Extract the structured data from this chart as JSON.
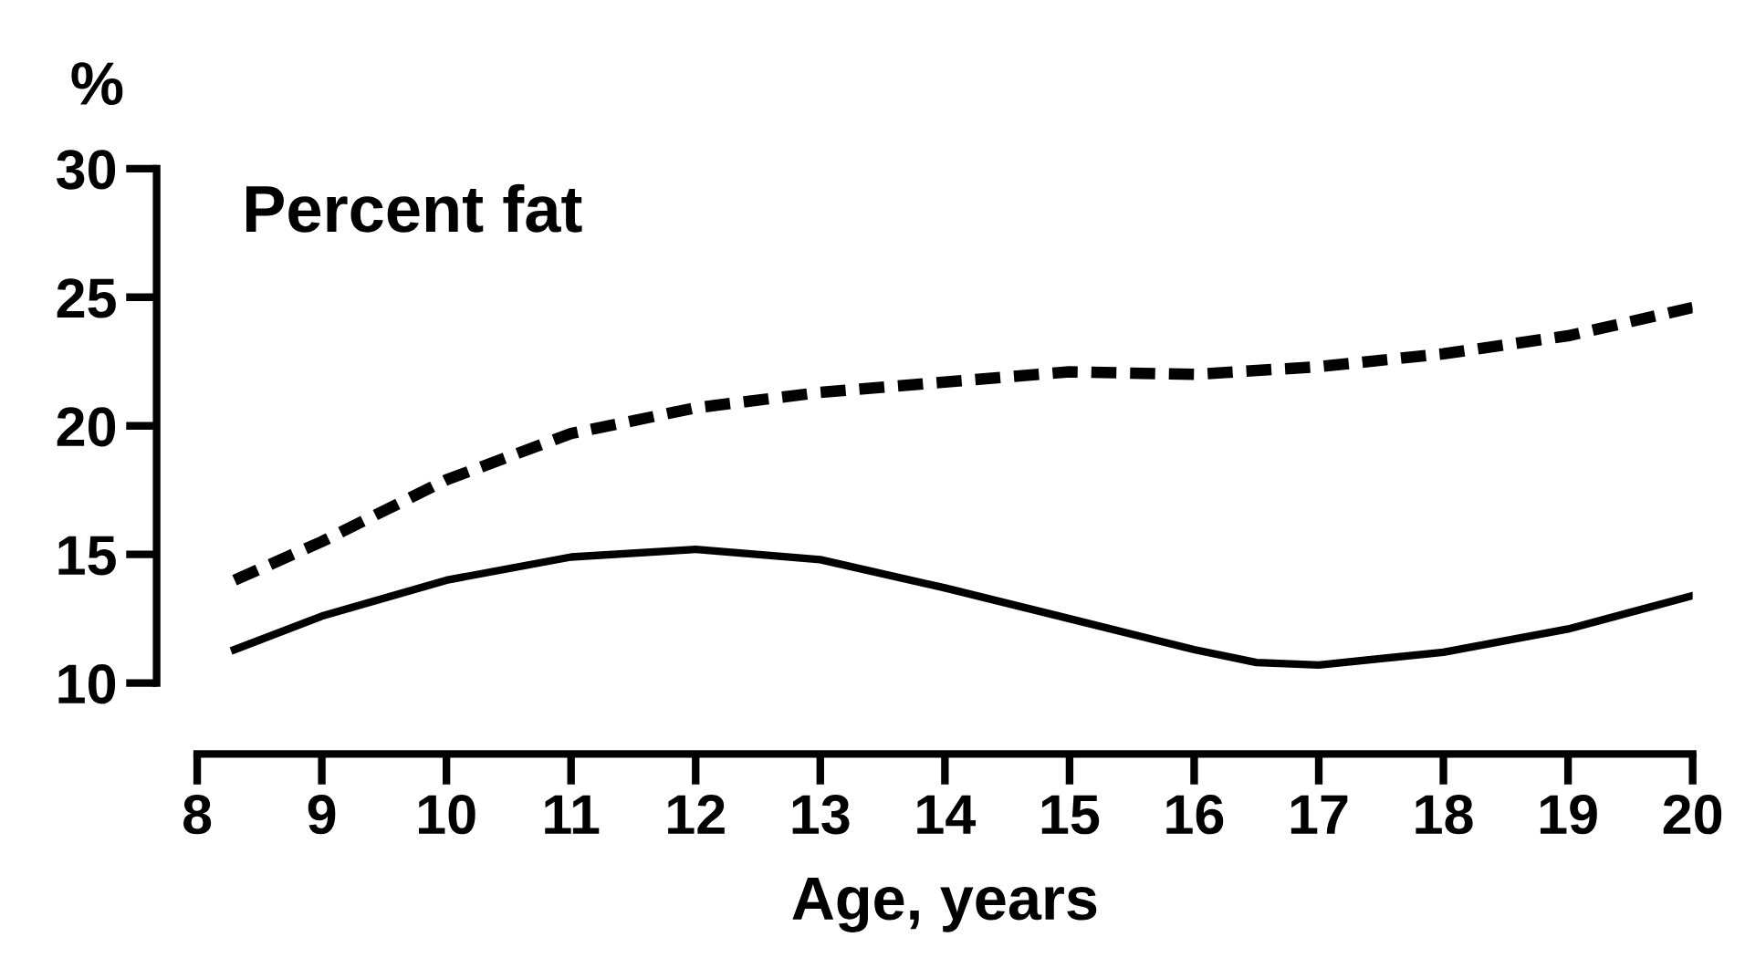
{
  "chart_data": {
    "type": "line",
    "title": "Percent fat",
    "ylabel": "%",
    "xlabel": "Age, years",
    "xlim": [
      8,
      20
    ],
    "xticks": [
      8,
      9,
      10,
      11,
      12,
      13,
      14,
      15,
      16,
      17,
      18,
      19,
      20
    ],
    "ylim": [
      10,
      30
    ],
    "yticks": [
      10,
      15,
      20,
      25,
      30
    ],
    "grid": false,
    "legend": false,
    "marker": "none",
    "series": [
      {
        "color": "#000000",
        "line_style": "dashed",
        "x": [
          8.3,
          9,
          10,
          11,
          12,
          13,
          14,
          15,
          16,
          17,
          18,
          19,
          20
        ],
        "values": [
          14.0,
          15.5,
          17.9,
          19.7,
          20.7,
          21.3,
          21.7,
          22.1,
          22.0,
          22.3,
          22.8,
          23.5,
          24.6
        ]
      },
      {
        "color": "#000000",
        "line_style": "solid",
        "x": [
          8.3,
          9,
          10,
          11,
          12,
          13,
          14,
          15,
          16,
          16.5,
          17,
          18,
          19,
          20
        ],
        "values": [
          11.3,
          12.6,
          14.0,
          14.9,
          15.2,
          14.8,
          13.7,
          12.5,
          11.3,
          10.8,
          10.7,
          11.2,
          12.1,
          13.4
        ]
      }
    ]
  }
}
